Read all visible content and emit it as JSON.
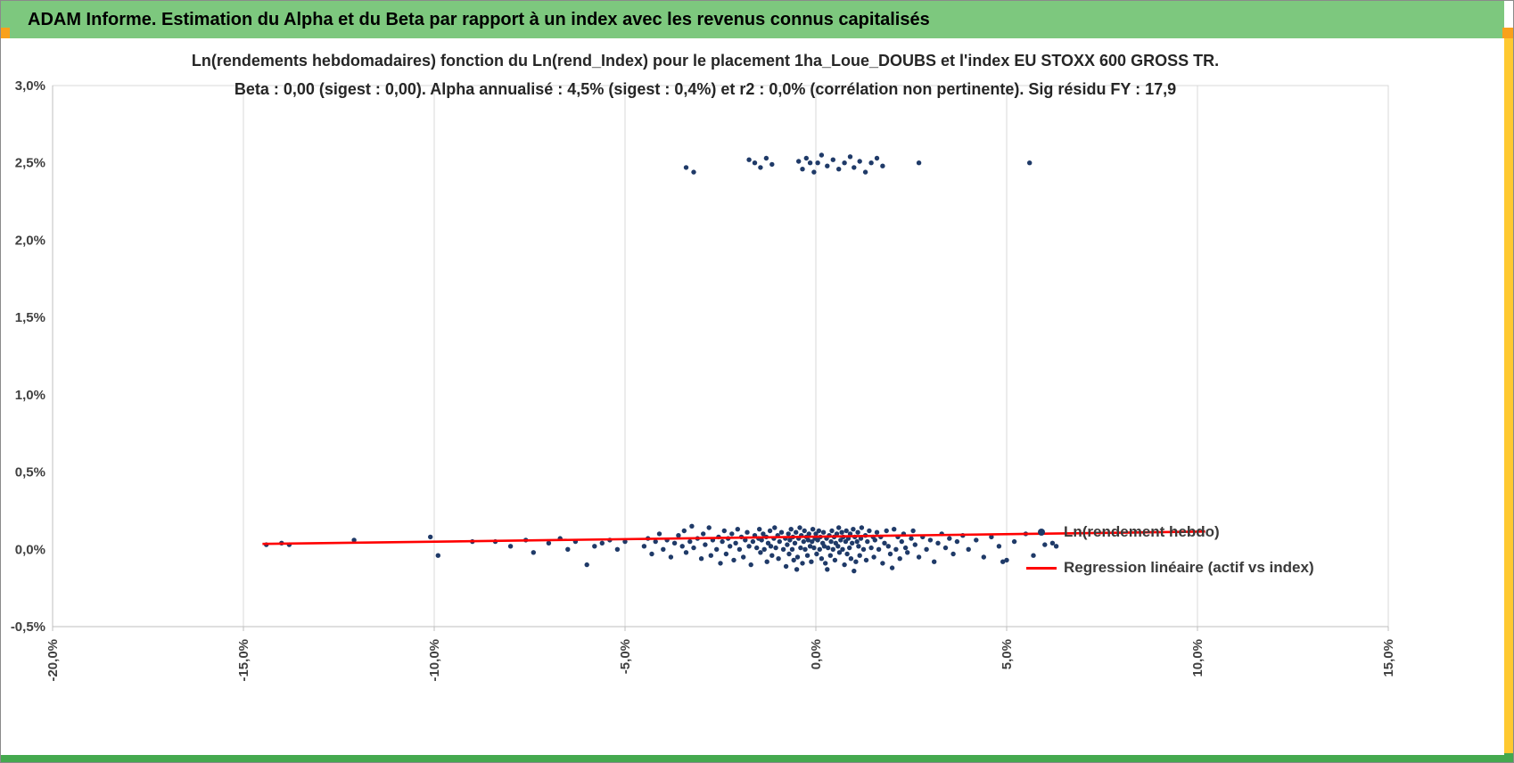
{
  "header": {
    "title": "ADAM Informe. Estimation du Alpha et du Beta par rapport à un index avec les revenus connus capitalisés"
  },
  "colors": {
    "header_bg": "#7DC87E",
    "accent_orange": "#F9A11B",
    "accent_yellow": "#FFC930",
    "accent_green": "#44A94E",
    "point": "#1F3A68",
    "regression": "#FF0000",
    "gridline": "#D9D9D9",
    "axis": "#BFBFBF",
    "tick_text": "#404040",
    "title_text": "#262626"
  },
  "chart_data": {
    "type": "scatter",
    "title": "Ln(rendements hebdomadaires) fonction du Ln(rend_Index) pour le placement 1ha_Loue_DOUBS et l'index EU STOXX 600 GROSS TR.",
    "subtitle": "Beta : 0,00 (sigest : 0,00). Alpha annualisé : 4,5% (sigest : 0,4%) et r2 : 0,0% (corrélation non pertinente). Sig résidu FY : 17,9",
    "x_axis": {
      "min": -20,
      "max": 15,
      "tick_step": 5,
      "unit": "%",
      "tick_labels": [
        "-20,0%",
        "-15,0%",
        "-10,0%",
        "-5,0%",
        "0,0%",
        "5,0%",
        "10,0%",
        "15,0%"
      ]
    },
    "y_axis": {
      "min": -0.5,
      "max": 3,
      "tick_step": 0.5,
      "unit": "%",
      "tick_labels": [
        "3,0%",
        "2,5%",
        "2,0%",
        "1,5%",
        "1,0%",
        "0,5%",
        "0,0%",
        "-0,5%"
      ]
    },
    "grid": "vertical-only",
    "legend_position": "inside-right-middle",
    "series": [
      {
        "name": "Ln(rendement hebdo)",
        "type": "scatter",
        "color": "#1F3A68",
        "points": [
          [
            -14.4,
            0.03
          ],
          [
            -14.0,
            0.04
          ],
          [
            -13.8,
            0.03
          ],
          [
            -12.1,
            0.06
          ],
          [
            -10.1,
            0.08
          ],
          [
            -9.9,
            -0.04
          ],
          [
            -9.0,
            0.05
          ],
          [
            -8.4,
            0.05
          ],
          [
            -8.0,
            0.02
          ],
          [
            -7.6,
            0.06
          ],
          [
            -7.4,
            -0.02
          ],
          [
            -7.0,
            0.04
          ],
          [
            -6.7,
            0.07
          ],
          [
            -6.5,
            0.0
          ],
          [
            -6.3,
            0.05
          ],
          [
            -6.0,
            -0.1
          ],
          [
            -5.8,
            0.02
          ],
          [
            -5.6,
            0.04
          ],
          [
            -5.4,
            0.06
          ],
          [
            -5.2,
            0.0
          ],
          [
            -5.0,
            0.05
          ],
          [
            -4.5,
            0.02
          ],
          [
            -4.4,
            0.07
          ],
          [
            -4.3,
            -0.03
          ],
          [
            -4.2,
            0.05
          ],
          [
            -4.1,
            0.1
          ],
          [
            -4.0,
            0.0
          ],
          [
            -3.9,
            0.06
          ],
          [
            -3.8,
            -0.05
          ],
          [
            -3.7,
            0.04
          ],
          [
            -3.6,
            0.09
          ],
          [
            -3.5,
            0.02
          ],
          [
            -3.45,
            0.12
          ],
          [
            -3.4,
            -0.02
          ],
          [
            -3.3,
            0.05
          ],
          [
            -3.25,
            0.15
          ],
          [
            -3.2,
            0.01
          ],
          [
            -3.1,
            0.07
          ],
          [
            -3.0,
            -0.06
          ],
          [
            -2.95,
            0.1
          ],
          [
            -2.9,
            0.03
          ],
          [
            -2.8,
            0.14
          ],
          [
            -2.75,
            -0.04
          ],
          [
            -2.7,
            0.06
          ],
          [
            -2.6,
            0.0
          ],
          [
            -2.55,
            0.08
          ],
          [
            -2.5,
            -0.09
          ],
          [
            -2.45,
            0.05
          ],
          [
            -2.4,
            0.12
          ],
          [
            -2.35,
            -0.03
          ],
          [
            -2.3,
            0.07
          ],
          [
            -2.25,
            0.02
          ],
          [
            -2.2,
            0.1
          ],
          [
            -2.15,
            -0.07
          ],
          [
            -2.1,
            0.04
          ],
          [
            -2.05,
            0.13
          ],
          [
            -2.0,
            0.0
          ],
          [
            -1.95,
            0.08
          ],
          [
            -1.9,
            -0.05
          ],
          [
            -1.85,
            0.06
          ],
          [
            -1.8,
            0.11
          ],
          [
            -1.75,
            0.02
          ],
          [
            -1.7,
            -0.1
          ],
          [
            -1.65,
            0.05
          ],
          [
            -1.6,
            0.09
          ],
          [
            -1.55,
            0.01
          ],
          [
            -1.5,
            0.07
          ],
          [
            -1.48,
            0.13
          ],
          [
            -1.45,
            -0.02
          ],
          [
            -1.42,
            0.06
          ],
          [
            -1.38,
            0.1
          ],
          [
            -1.35,
            0.0
          ],
          [
            -1.3,
            0.08
          ],
          [
            -1.28,
            -0.08
          ],
          [
            -1.25,
            0.04
          ],
          [
            -1.2,
            0.12
          ],
          [
            -1.18,
            0.02
          ],
          [
            -1.15,
            -0.04
          ],
          [
            -1.1,
            0.07
          ],
          [
            -1.08,
            0.14
          ],
          [
            -1.05,
            0.01
          ],
          [
            -1.0,
            0.09
          ],
          [
            -0.98,
            -0.06
          ],
          [
            -0.95,
            0.05
          ],
          [
            -0.9,
            0.11
          ],
          [
            -0.85,
            0.0
          ],
          [
            -0.8,
            0.07
          ],
          [
            -0.78,
            -0.11
          ],
          [
            -0.75,
            0.03
          ],
          [
            -0.72,
            0.1
          ],
          [
            -0.7,
            -0.03
          ],
          [
            -0.68,
            0.06
          ],
          [
            -0.65,
            0.13
          ],
          [
            -0.62,
            0.0
          ],
          [
            -0.6,
            0.08
          ],
          [
            -0.58,
            -0.07
          ],
          [
            -0.55,
            0.04
          ],
          [
            -0.52,
            0.11
          ],
          [
            -0.5,
            -0.13
          ],
          [
            -0.48,
            -0.05
          ],
          [
            -0.45,
            0.07
          ],
          [
            -0.42,
            0.14
          ],
          [
            -0.4,
            0.01
          ],
          [
            -0.38,
            0.09
          ],
          [
            -0.35,
            -0.09
          ],
          [
            -0.32,
            0.05
          ],
          [
            -0.3,
            0.12
          ],
          [
            -0.28,
            0.0
          ],
          [
            -0.25,
            0.08
          ],
          [
            -0.22,
            -0.04
          ],
          [
            -0.2,
            0.06
          ],
          [
            -0.18,
            0.1
          ],
          [
            -0.15,
            0.02
          ],
          [
            -0.12,
            -0.08
          ],
          [
            -0.1,
            0.05
          ],
          [
            -0.08,
            0.13
          ],
          [
            -0.05,
            0.01
          ],
          [
            -0.02,
            0.07
          ],
          [
            0.0,
            0.1
          ],
          [
            0.02,
            -0.03
          ],
          [
            0.05,
            0.06
          ],
          [
            0.08,
            0.12
          ],
          [
            0.1,
            0.0
          ],
          [
            0.12,
            0.08
          ],
          [
            0.15,
            -0.06
          ],
          [
            0.18,
            0.04
          ],
          [
            0.2,
            0.11
          ],
          [
            0.22,
            0.02
          ],
          [
            0.25,
            -0.09
          ],
          [
            0.28,
            0.07
          ],
          [
            0.3,
            -0.13
          ],
          [
            0.32,
            0.01
          ],
          [
            0.35,
            0.09
          ],
          [
            0.38,
            -0.04
          ],
          [
            0.4,
            0.05
          ],
          [
            0.42,
            0.12
          ],
          [
            0.45,
            0.0
          ],
          [
            0.48,
            0.08
          ],
          [
            0.5,
            -0.07
          ],
          [
            0.52,
            0.04
          ],
          [
            0.55,
            0.1
          ],
          [
            0.58,
            0.02
          ],
          [
            0.6,
            0.14
          ],
          [
            0.62,
            -0.02
          ],
          [
            0.65,
            0.06
          ],
          [
            0.68,
            0.11
          ],
          [
            0.7,
            0.0
          ],
          [
            0.72,
            0.08
          ],
          [
            0.75,
            -0.1
          ],
          [
            0.78,
            0.05
          ],
          [
            0.8,
            0.12
          ],
          [
            0.82,
            -0.03
          ],
          [
            0.85,
            0.07
          ],
          [
            0.88,
            0.01
          ],
          [
            0.9,
            0.1
          ],
          [
            0.92,
            -0.06
          ],
          [
            0.95,
            0.04
          ],
          [
            0.98,
            0.13
          ],
          [
            1.0,
            -0.14
          ],
          [
            1.02,
            0.08
          ],
          [
            1.05,
            -0.08
          ],
          [
            1.08,
            0.05
          ],
          [
            1.1,
            0.11
          ],
          [
            1.12,
            0.02
          ],
          [
            1.15,
            -0.04
          ],
          [
            1.18,
            0.07
          ],
          [
            1.2,
            0.14
          ],
          [
            1.25,
            0.0
          ],
          [
            1.3,
            0.09
          ],
          [
            1.32,
            -0.07
          ],
          [
            1.35,
            0.05
          ],
          [
            1.4,
            0.12
          ],
          [
            1.45,
            0.01
          ],
          [
            1.5,
            0.08
          ],
          [
            1.52,
            -0.05
          ],
          [
            1.55,
            0.06
          ],
          [
            1.6,
            0.11
          ],
          [
            1.65,
            0.0
          ],
          [
            1.7,
            0.08
          ],
          [
            1.75,
            -0.09
          ],
          [
            1.8,
            0.04
          ],
          [
            1.85,
            0.12
          ],
          [
            1.9,
            0.02
          ],
          [
            1.95,
            -0.03
          ],
          [
            2.0,
            -0.12
          ],
          [
            2.05,
            0.13
          ],
          [
            2.1,
            0.0
          ],
          [
            2.15,
            0.08
          ],
          [
            2.2,
            -0.06
          ],
          [
            2.25,
            0.05
          ],
          [
            2.3,
            0.1
          ],
          [
            2.35,
            0.01
          ],
          [
            2.4,
            -0.02
          ],
          [
            2.5,
            0.07
          ],
          [
            2.55,
            0.12
          ],
          [
            2.6,
            0.03
          ],
          [
            2.7,
            -0.05
          ],
          [
            2.8,
            0.08
          ],
          [
            2.9,
            0.0
          ],
          [
            3.0,
            0.06
          ],
          [
            3.1,
            -0.08
          ],
          [
            3.2,
            0.04
          ],
          [
            3.3,
            0.1
          ],
          [
            3.4,
            0.01
          ],
          [
            3.5,
            0.07
          ],
          [
            3.6,
            -0.03
          ],
          [
            3.7,
            0.05
          ],
          [
            3.85,
            0.09
          ],
          [
            4.0,
            0.0
          ],
          [
            4.2,
            0.06
          ],
          [
            4.4,
            -0.05
          ],
          [
            4.6,
            0.08
          ],
          [
            4.8,
            0.02
          ],
          [
            4.9,
            -0.08
          ],
          [
            5.0,
            -0.07
          ],
          [
            5.2,
            0.05
          ],
          [
            5.5,
            0.1
          ],
          [
            5.7,
            -0.04
          ],
          [
            6.0,
            0.03
          ],
          [
            6.2,
            0.04
          ],
          [
            6.3,
            0.02
          ],
          [
            -3.4,
            2.47
          ],
          [
            -3.2,
            2.44
          ],
          [
            -1.75,
            2.52
          ],
          [
            -1.6,
            2.5
          ],
          [
            -1.45,
            2.47
          ],
          [
            -1.3,
            2.53
          ],
          [
            -1.15,
            2.49
          ],
          [
            -0.45,
            2.51
          ],
          [
            -0.35,
            2.46
          ],
          [
            -0.25,
            2.53
          ],
          [
            -0.15,
            2.5
          ],
          [
            -0.05,
            2.44
          ],
          [
            0.05,
            2.5
          ],
          [
            0.15,
            2.55
          ],
          [
            0.3,
            2.48
          ],
          [
            0.45,
            2.52
          ],
          [
            0.6,
            2.46
          ],
          [
            0.75,
            2.5
          ],
          [
            0.9,
            2.54
          ],
          [
            1.0,
            2.47
          ],
          [
            1.15,
            2.51
          ],
          [
            1.3,
            2.44
          ],
          [
            1.45,
            2.5
          ],
          [
            1.6,
            2.53
          ],
          [
            1.75,
            2.48
          ],
          [
            2.7,
            2.5
          ],
          [
            5.6,
            2.5
          ]
        ]
      },
      {
        "name": "Regression linéaire (actif vs index)",
        "type": "line",
        "color": "#FF0000",
        "points": [
          [
            -14.5,
            0.035
          ],
          [
            10.2,
            0.115
          ]
        ]
      }
    ]
  }
}
